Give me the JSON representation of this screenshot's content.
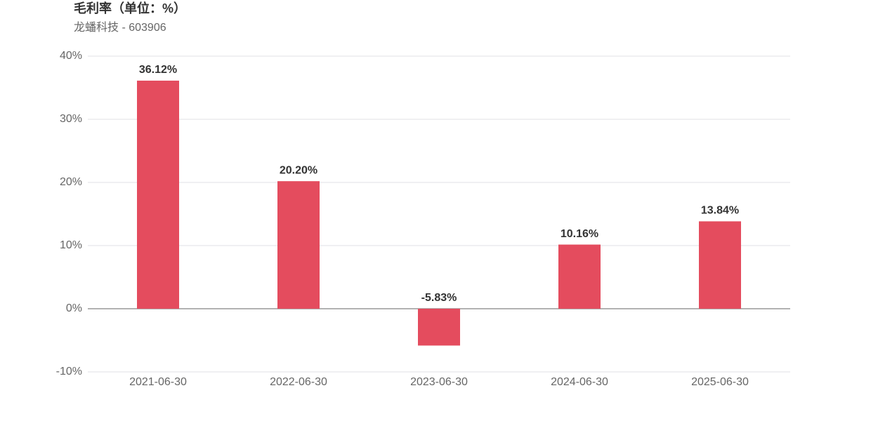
{
  "chart_data": {
    "type": "bar",
    "title": "毛利率（单位：%）",
    "subtitle": "龙蟠科技 - 603906",
    "categories": [
      "2021-06-30",
      "2022-06-30",
      "2023-06-30",
      "2024-06-30",
      "2025-06-30"
    ],
    "values": [
      36.12,
      20.2,
      -5.83,
      10.16,
      13.84
    ],
    "value_labels": [
      "36.12%",
      "20.20%",
      "-5.83%",
      "10.16%",
      "13.84%"
    ],
    "color": "#e44c5e",
    "ylim": [
      -10,
      40
    ],
    "yticks": [
      {
        "value": -10,
        "label": "-10%"
      },
      {
        "value": 0,
        "label": "0%"
      },
      {
        "value": 10,
        "label": "10%"
      },
      {
        "value": 20,
        "label": "20%"
      },
      {
        "value": 30,
        "label": "30%"
      },
      {
        "value": 40,
        "label": "40%"
      }
    ],
    "grid": true
  }
}
